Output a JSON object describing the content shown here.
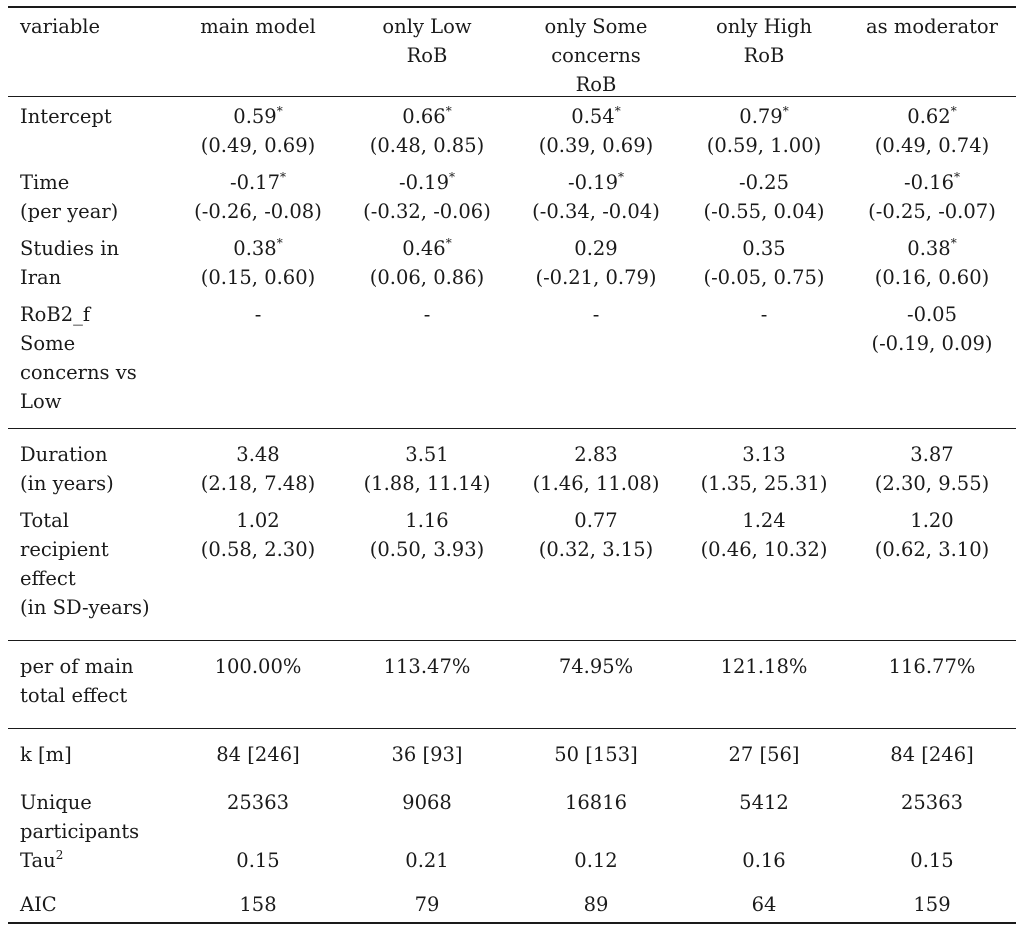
{
  "table": {
    "headers": [
      "variable",
      "main model",
      "only Low\nRoB",
      "only Some\nconcerns\nRoB",
      "only High\nRoB",
      "as moderator"
    ],
    "sections": [
      {
        "rows": [
          {
            "label": "Intercept",
            "cells": [
              "0.59*\n(0.49, 0.69)",
              "0.66*\n(0.48, 0.85)",
              "0.54*\n(0.39, 0.69)",
              "0.79*\n(0.59, 1.00)",
              "0.62*\n(0.49, 0.74)"
            ]
          },
          {
            "label": "Time\n(per year)",
            "cells": [
              "-0.17*\n(-0.26, -0.08)",
              "-0.19*\n(-0.32, -0.06)",
              "-0.19*\n(-0.34, -0.04)",
              "-0.25\n(-0.55, 0.04)",
              "-0.16*\n(-0.25, -0.07)"
            ]
          },
          {
            "label": "Studies in\nIran",
            "cells": [
              "0.38*\n(0.15, 0.60)",
              "0.46*\n(0.06, 0.86)",
              "0.29\n(-0.21, 0.79)",
              "0.35\n(-0.05, 0.75)",
              "0.38*\n(0.16, 0.60)"
            ]
          },
          {
            "label": "RoB2_f\nSome\nconcerns vs\nLow",
            "cells": [
              "-",
              "-",
              "-",
              "-",
              "-0.05\n(-0.19, 0.09)"
            ]
          }
        ]
      },
      {
        "rows": [
          {
            "label": "Duration\n(in years)",
            "cells": [
              "3.48\n(2.18, 7.48)",
              "3.51\n(1.88, 11.14)",
              "2.83\n(1.46, 11.08)",
              "3.13\n(1.35, 25.31)",
              "3.87\n(2.30, 9.55)"
            ]
          },
          {
            "label": "Total\nrecipient\neffect\n(in SD-years)",
            "cells": [
              "1.02\n(0.58, 2.30)",
              "1.16\n(0.50, 3.93)",
              "0.77\n(0.32, 3.15)",
              "1.24\n(0.46, 10.32)",
              "1.20\n(0.62, 3.10)"
            ]
          }
        ]
      },
      {
        "rows": [
          {
            "label": "per of main\ntotal effect",
            "cells": [
              "100.00%",
              "113.47%",
              "74.95%",
              "121.18%",
              "116.77%"
            ]
          }
        ]
      },
      {
        "rows": [
          {
            "label": "k [m]",
            "cells": [
              "84 [246]",
              "36 [93]",
              "50 [153]",
              "27 [56]",
              "84 [246]"
            ]
          },
          {
            "label": "Unique\nparticipants",
            "cells": [
              "25363",
              "9068",
              "16816",
              "5412",
              "25363"
            ]
          },
          {
            "label": "Tau2",
            "cells": [
              "0.15",
              "0.21",
              "0.12",
              "0.16",
              "0.15"
            ]
          },
          {
            "label": "AIC",
            "cells": [
              "158",
              "79",
              "89",
              "64",
              "159"
            ]
          }
        ]
      }
    ]
  }
}
